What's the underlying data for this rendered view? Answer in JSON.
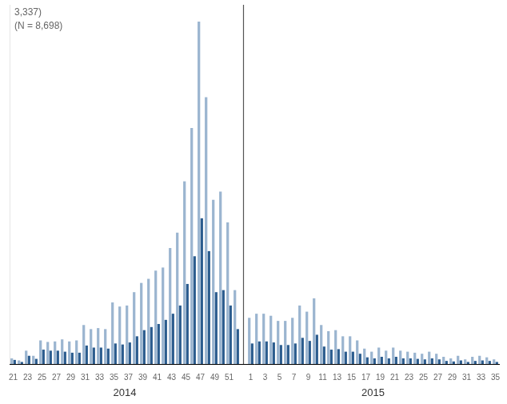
{
  "chart_data": {
    "type": "bar",
    "annotations": [
      {
        "text": "3,337)",
        "color": "#666666"
      },
      {
        "text": "(N = 8,698)",
        "color": "#666666"
      },
      {
        "type": "vline",
        "color": "#555555"
      }
    ],
    "xlabel": [
      "2014",
      "2015"
    ],
    "categories": [
      "21",
      null,
      "23",
      null,
      "25",
      null,
      "27",
      null,
      "29",
      null,
      "31",
      null,
      "33",
      null,
      "35",
      null,
      "37",
      null,
      "39",
      null,
      "41",
      null,
      "43",
      null,
      "45",
      null,
      "47",
      null,
      "49",
      null,
      "51",
      null,
      null,
      "1",
      null,
      "3",
      null,
      "5",
      null,
      "7",
      null,
      "9",
      null,
      "11",
      null,
      "13",
      null,
      "15",
      null,
      "17",
      null,
      "19",
      null,
      "21",
      null,
      "23",
      null,
      "25",
      null,
      "27",
      null,
      "29",
      null,
      "31",
      null,
      "33",
      null,
      "35"
    ],
    "series": [
      {
        "color": "#9BB5D0",
        "values": [
          55,
          35,
          130,
          80,
          230,
          215,
          220,
          240,
          220,
          230,
          380,
          340,
          350,
          340,
          600,
          560,
          570,
          700,
          790,
          830,
          910,
          940,
          1130,
          1280,
          1780,
          2300,
          3337,
          2600,
          1600,
          1680,
          1380,
          720,
          null,
          450,
          490,
          490,
          470,
          420,
          420,
          450,
          570,
          510,
          640,
          380,
          320,
          330,
          270,
          270,
          230,
          150,
          120,
          160,
          130,
          160,
          130,
          120,
          110,
          100,
          120,
          100,
          70,
          55,
          80,
          45,
          70,
          80,
          65,
          45
        ]
      },
      {
        "color": "#2B5C8E",
        "values": [
          40,
          20,
          80,
          50,
          140,
          130,
          130,
          120,
          110,
          110,
          180,
          160,
          160,
          150,
          200,
          190,
          210,
          270,
          330,
          360,
          390,
          430,
          490,
          570,
          780,
          1050,
          1420,
          1100,
          700,
          720,
          570,
          340,
          null,
          200,
          220,
          220,
          210,
          185,
          185,
          200,
          255,
          225,
          285,
          170,
          140,
          145,
          120,
          120,
          100,
          65,
          55,
          70,
          55,
          70,
          55,
          55,
          50,
          45,
          55,
          45,
          30,
          25,
          35,
          20,
          30,
          35,
          30,
          20
        ]
      }
    ],
    "ylim": [
      0,
      3500
    ],
    "grid": false,
    "tick_labels": "x"
  }
}
